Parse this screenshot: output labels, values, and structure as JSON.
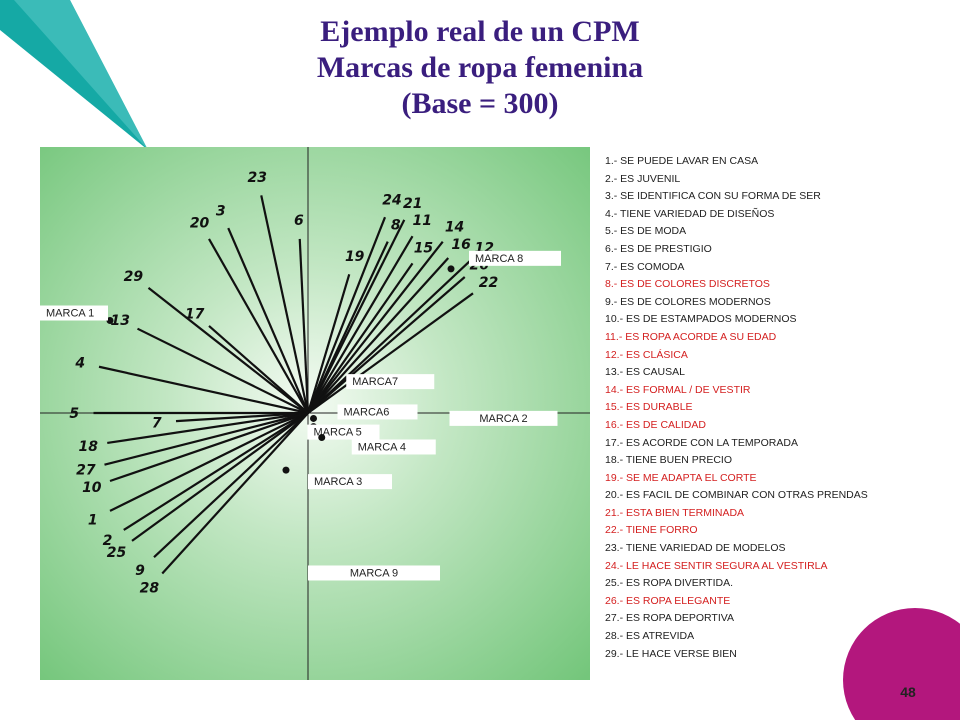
{
  "title": {
    "line1": "Ejemplo real de un CPM",
    "line2": "Marcas de ropa femenina",
    "line3": "(Base = 300)"
  },
  "page_number": "48",
  "colors": {
    "title": "#3a1e7e",
    "highlight": "#d42020",
    "teal_accent": "#15a9a5",
    "magenta_accent": "#b3177d",
    "plot_bg": "#7ecb83",
    "vector": "#111111"
  },
  "attributes": [
    {
      "id": "1",
      "text": "1.-  SE PUEDE LAVAR EN CASA",
      "highlight": false
    },
    {
      "id": "2",
      "text": "2.-  ES JUVENIL",
      "highlight": false
    },
    {
      "id": "3",
      "text": "3.-  SE IDENTIFICA CON SU FORMA DE SER",
      "highlight": false
    },
    {
      "id": "4",
      "text": "4.-  TIENE VARIEDAD DE DISEÑOS",
      "highlight": false
    },
    {
      "id": "5",
      "text": "5.-  ES DE MODA",
      "highlight": false
    },
    {
      "id": "6",
      "text": "6.-  ES DE PRESTIGIO",
      "highlight": false
    },
    {
      "id": "7",
      "text": "7.-  ES COMODA",
      "highlight": false
    },
    {
      "id": "8",
      "text": "8.-  ES DE COLORES DISCRETOS",
      "highlight": true
    },
    {
      "id": "9",
      "text": "9.-  ES DE COLORES MODERNOS",
      "highlight": false
    },
    {
      "id": "10",
      "text": "10.-  ES DE ESTAMPADOS MODERNOS",
      "highlight": false
    },
    {
      "id": "11",
      "text": "11.-  ES ROPA ACORDE A SU EDAD",
      "highlight": true
    },
    {
      "id": "12",
      "text": "12.-  ES CLÁSICA",
      "highlight": true
    },
    {
      "id": "13",
      "text": "13.-  ES CAUSAL",
      "highlight": false
    },
    {
      "id": "14",
      "text": "14.-  ES FORMAL / DE VESTIR",
      "highlight": true
    },
    {
      "id": "15",
      "text": "15.-  ES DURABLE",
      "highlight": true
    },
    {
      "id": "16",
      "text": "16.-  ES DE CALIDAD",
      "highlight": true
    },
    {
      "id": "17",
      "text": "17.-  ES ACORDE CON LA TEMPORADA",
      "highlight": false
    },
    {
      "id": "18",
      "text": "18.-  TIENE BUEN PRECIO",
      "highlight": false
    },
    {
      "id": "19",
      "text": "19.-  SE ME ADAPTA EL CORTE",
      "highlight": true
    },
    {
      "id": "20",
      "text": "20.-  ES FACIL DE COMBINAR CON OTRAS  PRENDAS",
      "highlight": false
    },
    {
      "id": "21",
      "text": "21.-  ESTA BIEN TERMINADA",
      "highlight": true
    },
    {
      "id": "22",
      "text": "22.-  TIENE FORRO",
      "highlight": true
    },
    {
      "id": "23",
      "text": "23.-  TIENE VARIEDAD DE MODELOS",
      "highlight": false
    },
    {
      "id": "24",
      "text": "24.-  LE HACE SENTIR SEGURA AL VESTIRLA",
      "highlight": true
    },
    {
      "id": "25",
      "text": "25.-  ES ROPA DIVERTIDA.",
      "highlight": false
    },
    {
      "id": "26",
      "text": "26.-  ES ROPA ELEGANTE",
      "highlight": true
    },
    {
      "id": "27",
      "text": "27.-  ES ROPA DEPORTIVA",
      "highlight": false
    },
    {
      "id": "28",
      "text": "28.-  ES ATREVIDA",
      "highlight": false
    },
    {
      "id": "29",
      "text": "29.-  LE HACE VERSE BIEN",
      "highlight": false
    }
  ],
  "chart_data": {
    "type": "scatter",
    "title": "",
    "xlabel": "",
    "ylabel": "",
    "xlim": [
      -1,
      1
    ],
    "ylim": [
      -1,
      1
    ],
    "grid": false,
    "note": "Biplot: attribute vectors from origin plus brand points",
    "vectors": [
      {
        "label": "1",
        "x": -0.72,
        "y": -0.36
      },
      {
        "label": "2",
        "x": -0.67,
        "y": -0.43
      },
      {
        "label": "3",
        "x": -0.29,
        "y": 0.68
      },
      {
        "label": "4",
        "x": -0.76,
        "y": 0.17
      },
      {
        "label": "5",
        "x": -0.78,
        "y": 0.0
      },
      {
        "label": "6",
        "x": -0.03,
        "y": 0.64
      },
      {
        "label": "7",
        "x": -0.48,
        "y": -0.03
      },
      {
        "label": "8",
        "x": 0.29,
        "y": 0.63
      },
      {
        "label": "9",
        "x": -0.56,
        "y": -0.53
      },
      {
        "label": "10",
        "x": -0.72,
        "y": -0.25
      },
      {
        "label": "11",
        "x": 0.38,
        "y": 0.65
      },
      {
        "label": "12",
        "x": 0.59,
        "y": 0.56
      },
      {
        "label": "13",
        "x": -0.62,
        "y": 0.31
      },
      {
        "label": "14",
        "x": 0.49,
        "y": 0.63
      },
      {
        "label": "15",
        "x": 0.38,
        "y": 0.55
      },
      {
        "label": "16",
        "x": 0.51,
        "y": 0.57
      },
      {
        "label": "17",
        "x": -0.36,
        "y": 0.32
      },
      {
        "label": "18",
        "x": -0.73,
        "y": -0.11
      },
      {
        "label": "19",
        "x": 0.15,
        "y": 0.51
      },
      {
        "label": "20",
        "x": -0.36,
        "y": 0.64
      },
      {
        "label": "21",
        "x": 0.35,
        "y": 0.71
      },
      {
        "label": "22",
        "x": 0.6,
        "y": 0.44
      },
      {
        "label": "23",
        "x": -0.17,
        "y": 0.8
      },
      {
        "label": "24",
        "x": 0.28,
        "y": 0.72
      },
      {
        "label": "25",
        "x": -0.64,
        "y": -0.47
      },
      {
        "label": "26",
        "x": 0.57,
        "y": 0.5
      },
      {
        "label": "27",
        "x": -0.74,
        "y": -0.19
      },
      {
        "label": "28",
        "x": -0.53,
        "y": -0.59
      },
      {
        "label": "29",
        "x": -0.58,
        "y": 0.46
      }
    ],
    "brands": [
      {
        "label": "MARCA 1",
        "x": -0.72,
        "y": 0.34
      },
      {
        "label": "MARCA 8",
        "x": 0.52,
        "y": 0.53
      },
      {
        "label": "MARCA7",
        "x": 0.03,
        "y": 0.04
      },
      {
        "label": "MARCA6",
        "x": 0.02,
        "y": -0.02
      },
      {
        "label": "MARCA 5",
        "x": 0.02,
        "y": -0.05
      },
      {
        "label": "MARCA 4",
        "x": 0.05,
        "y": -0.09
      },
      {
        "label": "MARCA 3",
        "x": -0.08,
        "y": -0.21
      },
      {
        "label": "MARCA 2",
        "x": 0.58,
        "y": -0.04
      },
      {
        "label": "MARCA 9",
        "x": 0.0,
        "y": -0.59
      }
    ]
  }
}
